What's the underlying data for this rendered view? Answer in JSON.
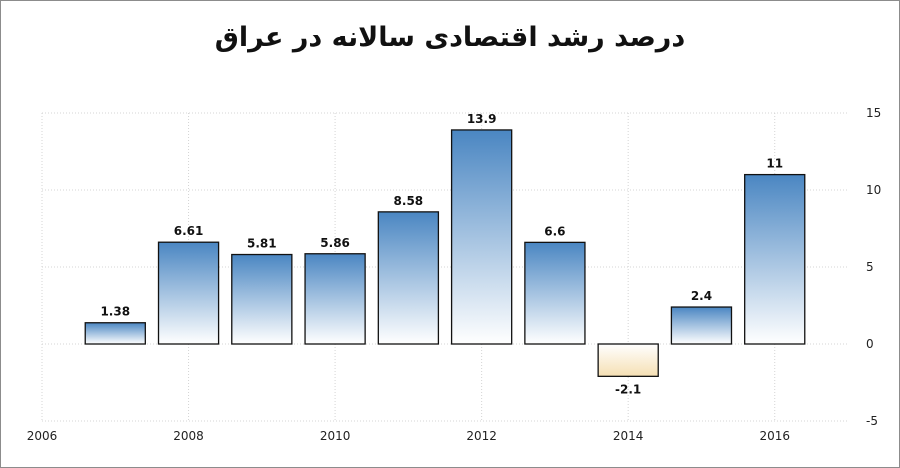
{
  "chart_data": {
    "type": "bar",
    "title": "درصد رشد اقتصادی سالانه در عراق",
    "xlabel": "",
    "ylabel": "",
    "x_ticks": [
      "2006",
      "2008",
      "2010",
      "2012",
      "2014",
      "2016"
    ],
    "categories": [
      "2007",
      "2008",
      "2009",
      "2010",
      "2011",
      "2012",
      "2013",
      "2014",
      "2015",
      "2016"
    ],
    "values": [
      1.38,
      6.61,
      5.81,
      5.86,
      8.58,
      13.9,
      6.6,
      -2.1,
      2.4,
      11
    ],
    "data_labels": [
      "1.38",
      "6.61",
      "5.81",
      "5.86",
      "8.58",
      "13.9",
      "6.6",
      "-2.1",
      "2.4",
      "11"
    ],
    "ylim": [
      -5,
      15
    ],
    "xlim": [
      2006,
      2017
    ],
    "y_ticks": [
      -5,
      0,
      5,
      10,
      15
    ],
    "y_axis_side": "right",
    "grid": true,
    "legend": "none",
    "colors": {
      "positive_top": "#4a86c2",
      "positive_bottom": "#ffffff",
      "negative_top": "#ffffff",
      "negative_bottom": "#f5dfb3"
    }
  }
}
